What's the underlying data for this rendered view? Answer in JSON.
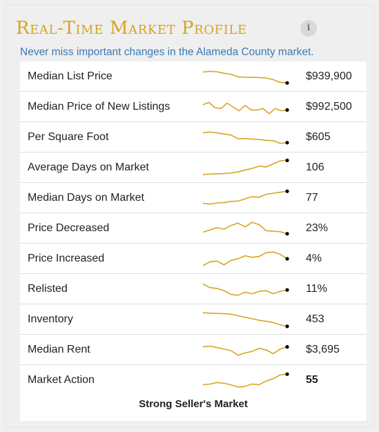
{
  "header": {
    "title": "Real-Time Market Profile",
    "info_icon_glyph": "i",
    "subtitle": "Never miss important changes in the Alameda County market."
  },
  "colors": {
    "accent": "#d8a420",
    "subtitle": "#3b7ab6",
    "sparkline": "#d8a420",
    "endpoint": "#000000"
  },
  "rows": [
    {
      "label": "Median List Price",
      "value": "$939,900",
      "trend": [
        0.8,
        0.85,
        0.82,
        0.72,
        0.65,
        0.48,
        0.46,
        0.45,
        0.44,
        0.41,
        0.3,
        0.12,
        0.08
      ]
    },
    {
      "label": "Median Price of New Listings",
      "value": "$992,500",
      "trend": [
        0.65,
        0.8,
        0.45,
        0.4,
        0.75,
        0.5,
        0.25,
        0.6,
        0.3,
        0.3,
        0.4,
        0.05,
        0.4,
        0.25,
        0.3
      ]
    },
    {
      "label": "Per Square Foot",
      "value": "$605",
      "trend": [
        0.8,
        0.85,
        0.8,
        0.72,
        0.65,
        0.4,
        0.42,
        0.38,
        0.36,
        0.3,
        0.28,
        0.1,
        0.15
      ]
    },
    {
      "label": "Average Days on Market",
      "value": "106",
      "trend": [
        0.05,
        0.08,
        0.1,
        0.12,
        0.15,
        0.22,
        0.35,
        0.45,
        0.6,
        0.55,
        0.75,
        0.95,
        0.98
      ]
    },
    {
      "label": "Median Days on Market",
      "value": "77",
      "trend": [
        0.15,
        0.1,
        0.18,
        0.2,
        0.28,
        0.3,
        0.45,
        0.6,
        0.55,
        0.75,
        0.82,
        0.88,
        0.95
      ]
    },
    {
      "label": "Price Decreased",
      "value": "23%",
      "trend": [
        0.25,
        0.4,
        0.55,
        0.45,
        0.7,
        0.85,
        0.6,
        0.9,
        0.75,
        0.35,
        0.32,
        0.28,
        0.15
      ]
    },
    {
      "label": "Price Increased",
      "value": "4%",
      "trend": [
        0.05,
        0.3,
        0.35,
        0.1,
        0.4,
        0.5,
        0.7,
        0.6,
        0.65,
        0.9,
        0.95,
        0.8,
        0.5
      ]
    },
    {
      "label": "Relisted",
      "value": "11%",
      "trend": [
        0.85,
        0.6,
        0.55,
        0.4,
        0.15,
        0.1,
        0.3,
        0.2,
        0.35,
        0.4,
        0.2,
        0.35,
        0.45
      ]
    },
    {
      "label": "Inventory",
      "value": "453",
      "trend": [
        0.95,
        0.92,
        0.9,
        0.88,
        0.85,
        0.75,
        0.65,
        0.55,
        0.45,
        0.38,
        0.3,
        0.15,
        0.05
      ]
    },
    {
      "label": "Median Rent",
      "value": "$3,695",
      "trend": [
        0.7,
        0.75,
        0.65,
        0.55,
        0.45,
        0.15,
        0.3,
        0.4,
        0.6,
        0.5,
        0.25,
        0.55,
        0.7
      ]
    },
    {
      "label": "Market Action",
      "value": "55",
      "bold": true,
      "trend": [
        0.2,
        0.25,
        0.35,
        0.3,
        0.2,
        0.05,
        0.1,
        0.25,
        0.2,
        0.45,
        0.6,
        0.85,
        0.9
      ]
    }
  ],
  "footer": {
    "market_status": "Strong Seller's Market"
  }
}
